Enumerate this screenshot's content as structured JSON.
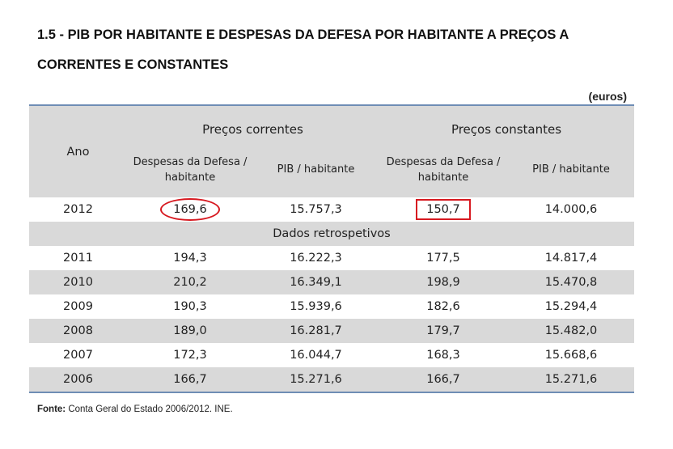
{
  "title_line1": "1.5 - PIB POR HABITANTE E DESPESAS DA DEFESA POR HABITANTE A PREÇOS A",
  "title_line2": "CORRENTES E CONSTANTES",
  "units": "(euros)",
  "header": {
    "ano": "Ano",
    "correntes": "Preços correntes",
    "constantes": "Preços constantes",
    "despesas": "Despesas da Defesa / habitante",
    "pib": "PIB / habitante"
  },
  "current_row": {
    "ano": "2012",
    "desp_corr": "169,6",
    "pib_corr": "15.757,3",
    "desp_const": "150,7",
    "pib_const": "14.000,6"
  },
  "section_label": "Dados retrospetivos",
  "rows": [
    {
      "ano": "2011",
      "desp_corr": "194,3",
      "pib_corr": "16.222,3",
      "desp_const": "177,5",
      "pib_const": "14.817,4"
    },
    {
      "ano": "2010",
      "desp_corr": "210,2",
      "pib_corr": "16.349,1",
      "desp_const": "198,9",
      "pib_const": "15.470,8"
    },
    {
      "ano": "2009",
      "desp_corr": "190,3",
      "pib_corr": "15.939,6",
      "desp_const": "182,6",
      "pib_const": "15.294,4"
    },
    {
      "ano": "2008",
      "desp_corr": "189,0",
      "pib_corr": "16.281,7",
      "desp_const": "179,7",
      "pib_const": "15.482,0"
    },
    {
      "ano": "2007",
      "desp_corr": "172,3",
      "pib_corr": "16.044,7",
      "desp_const": "168,3",
      "pib_const": "15.668,6"
    },
    {
      "ano": "2006",
      "desp_corr": "166,7",
      "pib_corr": "15.271,6",
      "desp_const": "166,7",
      "pib_const": "15.271,6"
    }
  ],
  "source_label": "Fonte:",
  "source_text": " Conta Geral do Estado 2006/2012. INE."
}
